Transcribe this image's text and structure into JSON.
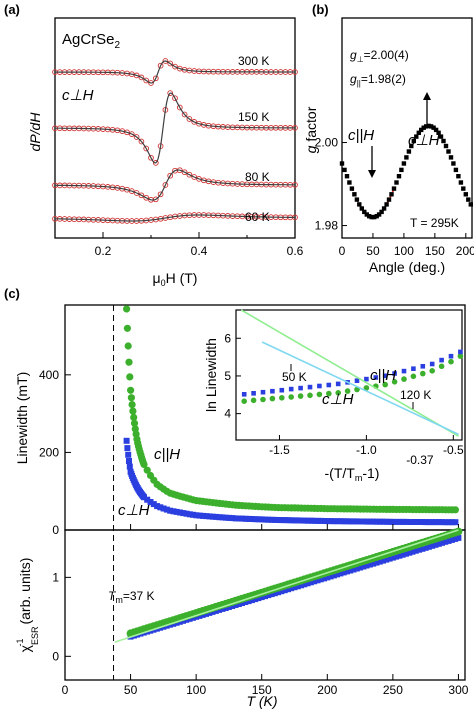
{
  "chart_data": [
    {
      "panel": "(a)",
      "type": "line",
      "title": "AgCrSe",
      "title_sub": "2",
      "xlabel": "μ",
      "xlabel_sub": "0",
      "xlabel_tail": "H (T)",
      "ylabel": "dP/dH",
      "xlim": [
        0.1,
        0.6
      ],
      "x_ticks": [
        "0.2",
        "0.4",
        "0.6"
      ],
      "orientation_label": "c⊥H",
      "series": [
        {
          "name": "300 K",
          "resonance_T": 0.315,
          "linewidth_T": 0.025,
          "amplitude": 0.32
        },
        {
          "name": "150 K",
          "resonance_T": 0.325,
          "linewidth_T": 0.028,
          "amplitude": 1.0
        },
        {
          "name": "80 K",
          "resonance_T": 0.33,
          "linewidth_T": 0.045,
          "amplitude": 0.55
        },
        {
          "name": "60 K",
          "resonance_T": 0.33,
          "linewidth_T": 0.12,
          "amplitude": 0.06
        }
      ]
    },
    {
      "panel": "(b)",
      "type": "scatter",
      "xlabel": "Angle (deg.)",
      "ylabel": "g factor",
      "xlim": [
        0,
        210
      ],
      "ylim": [
        1.977,
        2.03
      ],
      "x_ticks": [
        "0",
        "50",
        "100",
        "150",
        "200"
      ],
      "y_ticks": [
        "1.98",
        "2.00"
      ],
      "g_perp_label": "g",
      "g_perp_sub": "⊥",
      "g_perp_value": "=2.00(4)",
      "g_par_label": "g",
      "g_par_sub": "||",
      "g_par_value": "=1.98(2)",
      "label_par": "c||H",
      "label_perp": "c⊥H",
      "temperature": "T = 295K",
      "model": {
        "g_perp": 2.004,
        "g_par": 1.982,
        "min_angle_deg": 50
      },
      "marker_color": "#000000",
      "fit_color": "#e03030"
    },
    {
      "panel": "(c)",
      "type": "scatter",
      "ylabel": "Linewidth (mT)",
      "xlim": [
        0,
        305
      ],
      "ylim": [
        0,
        580
      ],
      "y_ticks": [
        "0",
        "200",
        "400"
      ],
      "label_par": "c||H",
      "label_perp": "c⊥H",
      "Tm": 37,
      "series": [
        {
          "name": "c||H",
          "color": "#3cb02c",
          "points": [
            [
              47,
              570
            ],
            [
              50,
              360
            ],
            [
              55,
              230
            ],
            [
              60,
              170
            ],
            [
              70,
              118
            ],
            [
              80,
              95
            ],
            [
              100,
              76
            ],
            [
              130,
              64
            ],
            [
              160,
              58
            ],
            [
              200,
              55
            ],
            [
              250,
              53
            ],
            [
              300,
              52
            ]
          ]
        },
        {
          "name": "c⊥H",
          "color": "#2b3fe0",
          "points": [
            [
              47,
              230
            ],
            [
              50,
              150
            ],
            [
              55,
              110
            ],
            [
              60,
              85
            ],
            [
              70,
              62
            ],
            [
              80,
              50
            ],
            [
              100,
              38
            ],
            [
              130,
              30
            ],
            [
              160,
              26
            ],
            [
              200,
              23
            ],
            [
              250,
              21
            ],
            [
              300,
              20
            ]
          ]
        }
      ],
      "inset": {
        "xlabel": "-(T/T",
        "xlabel_sub": "m",
        "xlabel_tail": "-1)",
        "ylabel": "ln Linewidth",
        "xlim": [
          -1.75,
          -0.45
        ],
        "ylim": [
          3.3,
          6.75
        ],
        "x_ticks": [
          "-1.5",
          "-1.0",
          "-0.5"
        ],
        "extra_tick": "-0.37",
        "y_ticks": [
          "4",
          "5",
          "6"
        ],
        "annot_50K": "50 K",
        "annot_120K": "120 K",
        "label_par": "c||H",
        "label_perp": "c⊥H"
      }
    },
    {
      "panel": "(c-lower)",
      "type": "scatter",
      "xlabel": "T (K)",
      "ylabel": "χ",
      "ylabel_sup": "-1",
      "ylabel_sub": "ESR",
      "ylabel_tail": "(arb. units)",
      "xlim": [
        0,
        305
      ],
      "ylim": [
        -0.3,
        1.6
      ],
      "x_ticks": [
        "0",
        "50",
        "100",
        "150",
        "200",
        "250",
        "300"
      ],
      "y_ticks": [
        "0",
        "1"
      ],
      "Tm_label": "T",
      "Tm_sub": "m",
      "Tm_value": "=37 K",
      "series": [
        {
          "name": "c||H",
          "color": "#3cb02c",
          "points": [
            [
              50,
              0.29
            ],
            [
              300,
              1.58
            ]
          ]
        },
        {
          "name": "c⊥H",
          "color": "#2b3fe0",
          "points": [
            [
              50,
              0.25
            ],
            [
              300,
              1.5
            ]
          ]
        }
      ]
    }
  ]
}
